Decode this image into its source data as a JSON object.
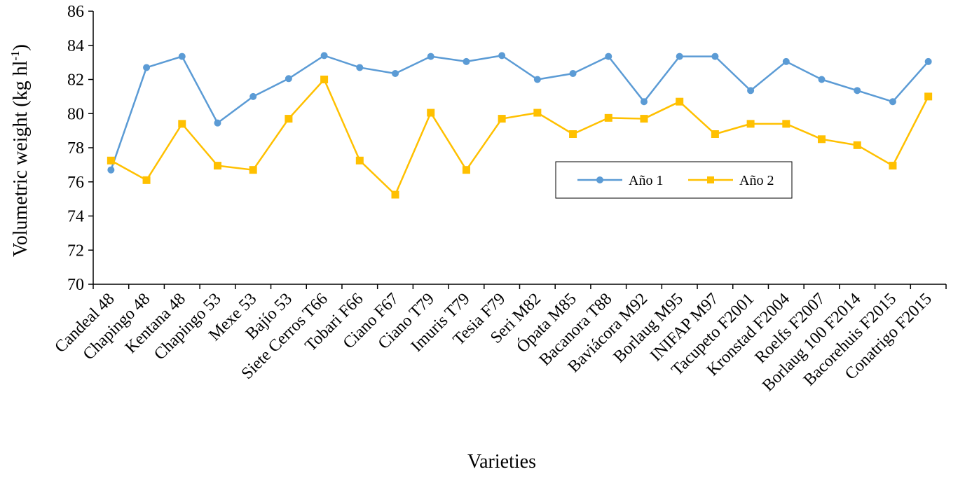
{
  "chart_data": {
    "type": "line",
    "title": "",
    "xlabel": "Varieties",
    "ylabel": "Volumetric weight (kg hl",
    "ylabel_sup": "-1",
    "ylabel_close": ")",
    "ylim": [
      70,
      86
    ],
    "yticks": [
      70,
      72,
      74,
      76,
      78,
      80,
      82,
      84,
      86
    ],
    "grid": false,
    "legend_position": "center-right",
    "categories": [
      "Candeal 48",
      "Chapingo 48",
      "Kentana 48",
      "Chapingo 53",
      "Mexe 53",
      "Bajío 53",
      "Siete Cerros T66",
      "Tobari F66",
      "Ciano F67",
      "Ciano T79",
      "Imuris T79",
      "Tesia F79",
      "Seri M82",
      "Ópata M85",
      "Bacanora T88",
      "Baviácora M92",
      "Borlaug M95",
      "INIFAP M97",
      "Tacupeto F2001",
      "Kronstad F2004",
      "Roelfs F2007",
      "Borlaug 100 F2014",
      "Bacorehuis F2015",
      "Conatrigo F2015"
    ],
    "series": [
      {
        "name": "Año 1",
        "color": "#5B9BD5",
        "marker": "circle",
        "values": [
          76.7,
          82.7,
          83.35,
          79.45,
          81.0,
          82.05,
          83.4,
          82.7,
          82.35,
          83.35,
          83.05,
          83.4,
          82.0,
          82.35,
          83.35,
          80.7,
          83.35,
          83.35,
          81.35,
          83.05,
          82.0,
          81.35,
          80.7,
          83.05
        ]
      },
      {
        "name": "Año 2",
        "color": "#FFC000",
        "marker": "square",
        "values": [
          77.25,
          76.1,
          79.4,
          76.95,
          76.7,
          79.7,
          82.0,
          77.25,
          75.25,
          80.05,
          76.7,
          79.7,
          80.05,
          78.8,
          79.75,
          79.7,
          80.7,
          78.8,
          79.4,
          79.4,
          78.5,
          78.15,
          76.95,
          81.0
        ]
      }
    ]
  }
}
